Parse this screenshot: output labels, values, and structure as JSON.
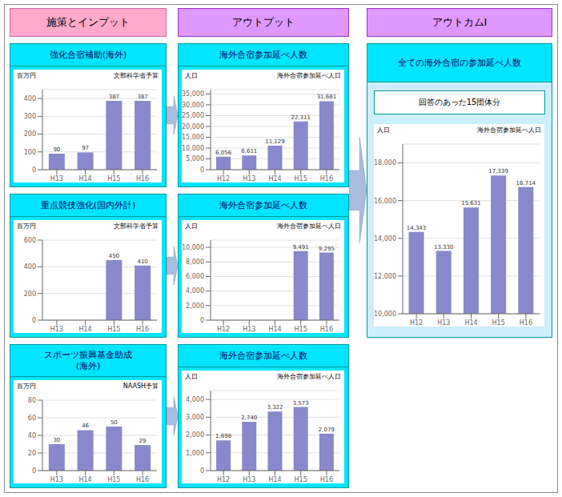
{
  "annotations": [
    "施策とインプット",
    "アウトプット",
    "アウトカムⅠ"
  ],
  "chart_data": [
    {
      "type": "bar",
      "title": "強化合宿補助(海外)",
      "subtitle": "文部科学省予算",
      "ylabel": "百万円",
      "categories": [
        "H13",
        "H14",
        "H15",
        "H16"
      ],
      "values": [
        90,
        97,
        387,
        387
      ],
      "data_labels": true,
      "value_labels": [
        "90",
        "97",
        "387",
        "387"
      ],
      "color": "#8888cc",
      "ylim": [
        0,
        450
      ],
      "yticks": [
        0,
        100,
        200,
        300,
        400
      ],
      "grid": true
    },
    {
      "type": "bar",
      "title": "重点競技強化(国内外計)",
      "subtitle": "文部科学省予算",
      "ylabel": "百万円",
      "categories": [
        "H13",
        "H14",
        "H15",
        "H16"
      ],
      "values": [
        0,
        0,
        450,
        410
      ],
      "data_labels": true,
      "value_labels": [
        null,
        null,
        "450",
        "410"
      ],
      "color": "#8888cc",
      "ylim": [
        0,
        600
      ],
      "yticks": [
        0,
        200,
        400,
        600
      ],
      "grid": true
    },
    {
      "type": "bar",
      "title": "スポーツ振興基金助成\n(海外)",
      "subtitle": "NAASH予算",
      "ylabel": "百万円",
      "categories": [
        "H13",
        "H14",
        "H15",
        "H16"
      ],
      "values": [
        30,
        46,
        50,
        29
      ],
      "data_labels": true,
      "value_labels": [
        "30",
        "46",
        "50",
        "29"
      ],
      "color": "#8888cc",
      "ylim": [
        0,
        80
      ],
      "yticks": [
        0,
        20,
        40,
        60,
        80
      ],
      "grid": true
    },
    {
      "type": "bar",
      "title": "海外合宿参加延べ人数",
      "subtitle": "海外合宿参加延べ人日",
      "ylabel": "人日",
      "categories": [
        "H12",
        "H13",
        "H14",
        "H15",
        "H16"
      ],
      "values": [
        6056,
        6611,
        11129,
        22311,
        31681
      ],
      "data_labels": true,
      "value_labels": [
        "6,056",
        "6,611",
        "11,129",
        "22,311",
        "31,681"
      ],
      "color": "#8888cc",
      "ylim": [
        0,
        37000
      ],
      "yticks": [
        0,
        {
          "value": 5000,
          "label": "5,000"
        },
        {
          "value": 10000,
          "label": "10,000"
        },
        {
          "value": 15000,
          "label": "15,000"
        },
        {
          "value": 20000,
          "label": "20,000"
        },
        {
          "value": 25000,
          "label": "25,000"
        },
        {
          "value": 30000,
          "label": "30,000"
        },
        {
          "value": 35000,
          "label": "35,000"
        }
      ],
      "grid": true
    },
    {
      "type": "bar",
      "title": "海外合宿参加延べ人数",
      "subtitle": "海外合宿参加延べ人日",
      "ylabel": "人日",
      "categories": [
        "H12",
        "H13",
        "H14",
        "H15",
        "H16"
      ],
      "values": [
        0,
        0,
        0,
        9491,
        9295
      ],
      "data_labels": true,
      "value_labels": [
        null,
        null,
        null,
        "9,491",
        "9,295"
      ],
      "color": "#8888cc",
      "ylim": [
        0,
        11000
      ],
      "yticks": [
        0,
        {
          "value": 2000,
          "label": "2,000"
        },
        {
          "value": 4000,
          "label": "4,000"
        },
        {
          "value": 6000,
          "label": "6,000"
        },
        {
          "value": 8000,
          "label": "8,000"
        },
        {
          "value": 10000,
          "label": "10,000"
        }
      ],
      "grid": true
    },
    {
      "type": "bar",
      "title": "海外合宿参加延べ人数",
      "subtitle": "海外合宿参加延べ人日",
      "ylabel": "人日",
      "categories": [
        "H12",
        "H13",
        "H14",
        "H15",
        "H16"
      ],
      "values": [
        1698,
        2740,
        3322,
        3573,
        2079
      ],
      "data_labels": true,
      "value_labels": [
        "1,698",
        "2,740",
        "3,322",
        "3,573",
        "2,079"
      ],
      "color": "#8888cc",
      "ylim": [
        0,
        4500
      ],
      "yticks": [
        0,
        {
          "value": 1000,
          "label": "1,000"
        },
        {
          "value": 2000,
          "label": "2,000"
        },
        {
          "value": 3000,
          "label": "3,000"
        },
        {
          "value": 4000,
          "label": "4,000"
        }
      ],
      "grid": true
    },
    {
      "type": "bar",
      "title": "全ての海外合宿の参加延べ人数",
      "annotations": [
        "回答のあった15団体分"
      ],
      "subtitle": "海外合宿参加延べ人日",
      "ylabel": "人日",
      "categories": [
        "H12",
        "H13",
        "H14",
        "H15",
        "H16"
      ],
      "values": [
        14343,
        13330,
        15631,
        17339,
        16714
      ],
      "data_labels": true,
      "value_labels": [
        "14,343",
        "13,330",
        "15,631",
        "17,339",
        "16,714"
      ],
      "color": "#8888cc",
      "ylim": [
        10000,
        19000
      ],
      "yticks": [
        {
          "value": 10000,
          "label": "10,000"
        },
        {
          "value": 12000,
          "label": "12,000"
        },
        {
          "value": 14000,
          "label": "14,000"
        },
        {
          "value": 16000,
          "label": "16,000"
        },
        {
          "value": 18000,
          "label": "18,000"
        }
      ],
      "grid": true
    }
  ]
}
